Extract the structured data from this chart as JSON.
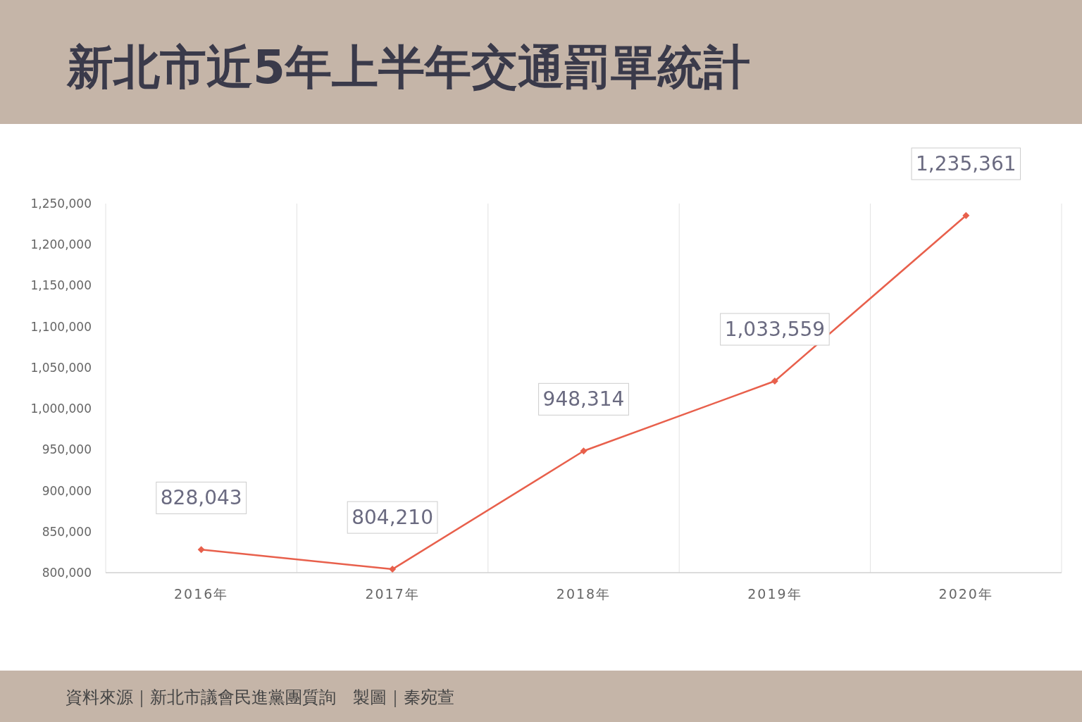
{
  "chart_data": {
    "type": "line",
    "title": "新北市近5年上半年交通罰單統計",
    "categories": [
      "2016年",
      "2017年",
      "2018年",
      "2019年",
      "2020年"
    ],
    "series": [
      {
        "color": "#e8604c",
        "values": [
          828043,
          804210,
          948314,
          1033559,
          1235361
        ],
        "value_labels": [
          "828,043",
          "804,210",
          "948,314",
          "1,033,559",
          "1,235,361"
        ]
      }
    ],
    "ylim": [
      800000,
      1250000
    ],
    "yticks": [
      {
        "value": 800000,
        "label": "800,000"
      },
      {
        "value": 850000,
        "label": "850,000"
      },
      {
        "value": 900000,
        "label": "900,000"
      },
      {
        "value": 950000,
        "label": "950,000"
      },
      {
        "value": 1000000,
        "label": "1,000,000"
      },
      {
        "value": 1050000,
        "label": "1,050,000"
      },
      {
        "value": 1100000,
        "label": "1,100,000"
      },
      {
        "value": 1150000,
        "label": "1,150,000"
      },
      {
        "value": 1200000,
        "label": "1,200,000"
      },
      {
        "value": 1250000,
        "label": "1,250,000"
      }
    ],
    "grid": "x",
    "marker": "diamond",
    "line_style": "solid",
    "annotations": [
      "資料來源｜新北市議會民進黨團質詢　製圖｜秦宛萱"
    ]
  }
}
